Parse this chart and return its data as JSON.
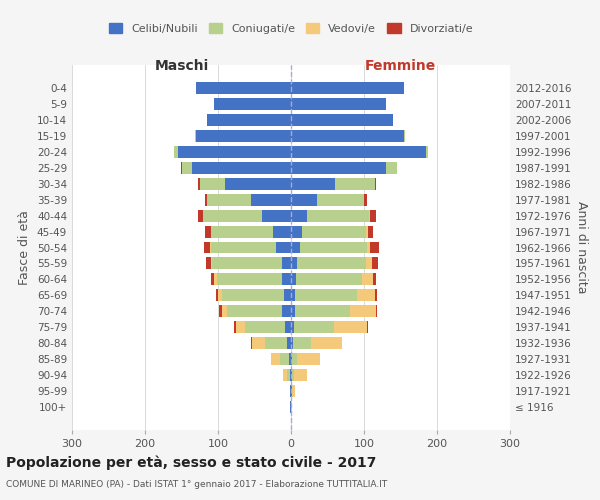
{
  "age_groups": [
    "100+",
    "95-99",
    "90-94",
    "85-89",
    "80-84",
    "75-79",
    "70-74",
    "65-69",
    "60-64",
    "55-59",
    "50-54",
    "45-49",
    "40-44",
    "35-39",
    "30-34",
    "25-29",
    "20-24",
    "15-19",
    "10-14",
    "5-9",
    "0-4"
  ],
  "birth_years": [
    "≤ 1916",
    "1917-1921",
    "1922-1926",
    "1927-1931",
    "1932-1936",
    "1937-1941",
    "1942-1946",
    "1947-1951",
    "1952-1956",
    "1957-1961",
    "1962-1966",
    "1967-1971",
    "1972-1976",
    "1977-1981",
    "1982-1986",
    "1987-1991",
    "1992-1996",
    "1997-2001",
    "2002-2006",
    "2007-2011",
    "2012-2016"
  ],
  "males": {
    "celibi": [
      1,
      1,
      2,
      3,
      5,
      8,
      12,
      10,
      12,
      13,
      20,
      25,
      40,
      55,
      90,
      135,
      155,
      130,
      115,
      105,
      130
    ],
    "coniugati": [
      0,
      0,
      4,
      12,
      30,
      55,
      75,
      85,
      90,
      95,
      90,
      85,
      80,
      60,
      35,
      15,
      5,
      2,
      0,
      0,
      0
    ],
    "vedovi": [
      0,
      1,
      5,
      12,
      18,
      12,
      8,
      5,
      3,
      2,
      1,
      0,
      0,
      0,
      0,
      0,
      0,
      0,
      0,
      0,
      0
    ],
    "divorziati": [
      0,
      0,
      0,
      0,
      2,
      3,
      3,
      3,
      5,
      7,
      8,
      8,
      8,
      3,
      2,
      1,
      0,
      0,
      0,
      0,
      0
    ]
  },
  "females": {
    "nubili": [
      0,
      1,
      1,
      1,
      3,
      4,
      6,
      5,
      7,
      8,
      12,
      15,
      22,
      35,
      60,
      130,
      185,
      155,
      140,
      130,
      155
    ],
    "coniugate": [
      0,
      0,
      3,
      7,
      25,
      55,
      75,
      85,
      90,
      95,
      92,
      88,
      85,
      65,
      55,
      15,
      3,
      1,
      0,
      0,
      0
    ],
    "vedove": [
      1,
      5,
      18,
      32,
      42,
      45,
      35,
      25,
      15,
      8,
      4,
      2,
      1,
      0,
      0,
      0,
      0,
      0,
      0,
      0,
      0
    ],
    "divorziate": [
      0,
      0,
      0,
      0,
      0,
      2,
      2,
      3,
      5,
      8,
      12,
      8,
      8,
      4,
      2,
      0,
      0,
      0,
      0,
      0,
      0
    ]
  },
  "colors": {
    "celibi_nubili": "#4472c4",
    "coniugati": "#b8d08e",
    "vedovi": "#f5c97a",
    "divorziati": "#c0392b"
  },
  "title": "Popolazione per età, sesso e stato civile - 2017",
  "subtitle": "COMUNE DI MARINEO (PA) - Dati ISTAT 1° gennaio 2017 - Elaborazione TUTTITALIA.IT",
  "xlabel_left": "Maschi",
  "xlabel_right": "Femmine",
  "ylabel_left": "Fasce di età",
  "ylabel_right": "Anni di nascita",
  "xlim": 300,
  "bg_color": "#f5f5f5",
  "plot_bg_color": "#ffffff",
  "legend_labels": [
    "Celibi/Nubili",
    "Coniugati/e",
    "Vedovi/e",
    "Divorziati/e"
  ]
}
